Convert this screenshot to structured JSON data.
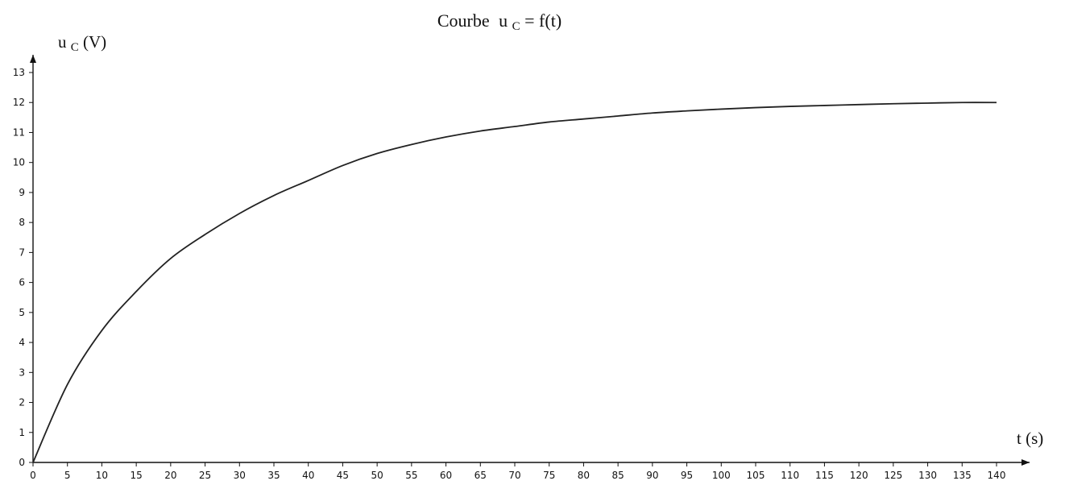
{
  "chart_data": {
    "type": "line",
    "title": "Courbe",
    "title_formula": {
      "base": "u",
      "subscript": "C",
      "rest": " = f(t)"
    },
    "xlabel": "t (s)",
    "ylabel": {
      "base": "u",
      "subscript": "C",
      "rest": "(V)"
    },
    "xlim": [
      0,
      140
    ],
    "ylim": [
      0,
      13
    ],
    "x_ticks": [
      0,
      5,
      10,
      15,
      20,
      25,
      30,
      35,
      40,
      45,
      50,
      55,
      60,
      65,
      70,
      75,
      80,
      85,
      90,
      95,
      100,
      105,
      110,
      115,
      120,
      125,
      130,
      135,
      140
    ],
    "y_ticks": [
      0,
      1,
      2,
      3,
      4,
      5,
      6,
      7,
      8,
      9,
      10,
      11,
      12,
      13
    ],
    "grid": false,
    "series": [
      {
        "x": [
          0,
          5,
          10,
          15,
          20,
          25,
          30,
          35,
          40,
          45,
          50,
          55,
          60,
          65,
          70,
          75,
          80,
          85,
          90,
          95,
          100,
          105,
          110,
          115,
          120,
          125,
          130,
          135,
          140
        ],
        "values": [
          0,
          2.6,
          4.4,
          5.7,
          6.8,
          7.6,
          8.3,
          8.9,
          9.4,
          9.9,
          10.3,
          10.6,
          10.85,
          11.05,
          11.2,
          11.35,
          11.45,
          11.55,
          11.65,
          11.72,
          11.78,
          11.83,
          11.87,
          11.9,
          11.93,
          11.96,
          11.98,
          12.0,
          12.0
        ]
      }
    ]
  }
}
